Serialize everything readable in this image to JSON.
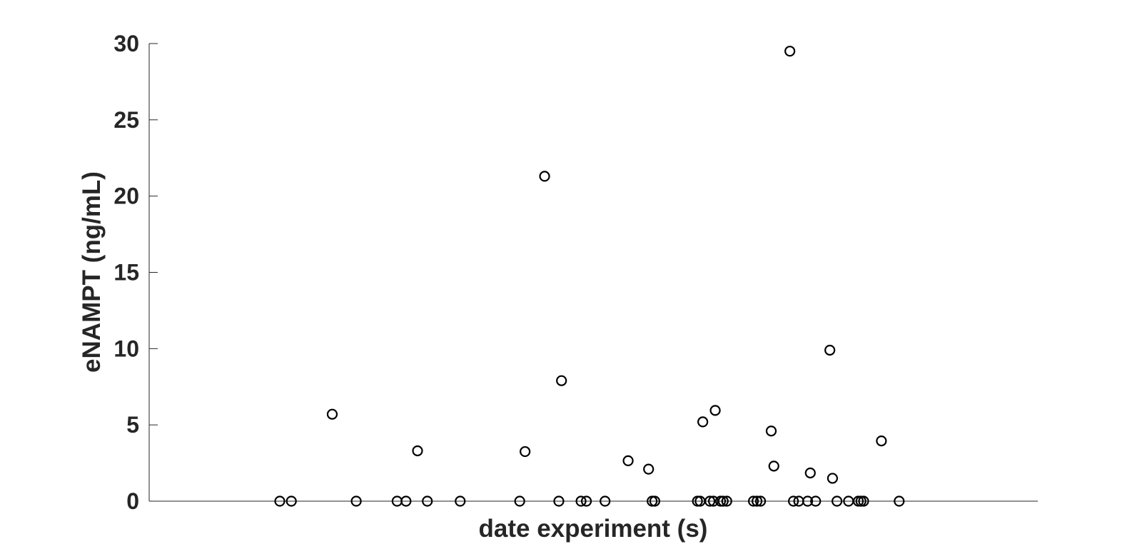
{
  "chart_data": {
    "type": "scatter",
    "title": "",
    "xlabel": "date experiment (s)",
    "ylabel": "eNAMPT (ng/mL)",
    "ylim": [
      0,
      30
    ],
    "yticks": [
      0,
      5,
      10,
      15,
      20,
      25,
      30
    ],
    "ytick_labels": [
      "0",
      "5",
      "10",
      "15",
      "20",
      "25",
      "30"
    ],
    "xlim": [
      0,
      100
    ],
    "xticks": [],
    "grid": false,
    "legend": "none",
    "marker": "open-circle",
    "marker_color": "#000000",
    "axis_color": "#262626",
    "series": [
      {
        "x": [
          14.7,
          16.0,
          20.6,
          23.3,
          27.9,
          28.9,
          30.2,
          31.3,
          35.0,
          41.7,
          42.3,
          44.5,
          46.1,
          46.4,
          48.6,
          49.2,
          51.3,
          53.9,
          56.2,
          56.6,
          56.9,
          61.7,
          62.0,
          62.3,
          63.7,
          65.0,
          68.0,
          68.4,
          70.0,
          70.3,
          63.1,
          63.5,
          64.3,
          64.6,
          68.8,
          72.1,
          72.5,
          73.1,
          74.1,
          74.4,
          75.0,
          76.6,
          76.9,
          77.4,
          78.7,
          79.8,
          80.1,
          80.4,
          82.4,
          84.4
        ],
        "y": [
          0,
          0,
          5.7,
          0,
          0,
          0,
          3.3,
          0,
          0,
          0,
          3.25,
          21.3,
          0,
          7.9,
          0,
          0,
          0,
          2.65,
          2.1,
          0,
          0,
          0,
          0,
          5.2,
          5.95,
          0,
          0,
          0,
          4.6,
          2.3,
          0,
          0,
          0,
          0,
          0,
          29.5,
          0,
          0,
          0,
          1.85,
          0,
          9.9,
          1.5,
          0,
          0,
          0,
          0,
          0,
          3.95,
          0
        ]
      }
    ]
  }
}
